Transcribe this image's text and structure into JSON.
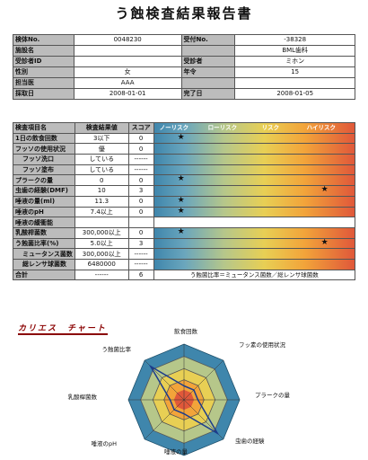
{
  "title": "う蝕検査結果報告書",
  "info": {
    "rows": [
      {
        "l1": "検体No.",
        "v1": "0048230",
        "l2": "受付No.",
        "v2": "-38328"
      },
      {
        "l1": "施設名",
        "v1": "",
        "l2": "",
        "v2": "BML歯科"
      },
      {
        "l1": "受診者ID",
        "v1": "",
        "l2": "受診者",
        "v2": "ミホン"
      },
      {
        "l1": "性別",
        "v1": "女",
        "l2": "年令",
        "v2": "15"
      },
      {
        "l1": "担当医",
        "v1": "AAA",
        "l2": "",
        "v2": ""
      },
      {
        "l1": "採取日",
        "v1": "2008-01-01",
        "l2": "完了日",
        "v2": "2008-01-05"
      }
    ]
  },
  "results": {
    "headers": {
      "item": "検査項目名",
      "value": "検査結果値",
      "score": "スコア"
    },
    "risk_labels": [
      "ノーリスク",
      "ローリスク",
      "リスク",
      "ハイリスク"
    ],
    "rows": [
      {
        "name": "1日の飲食回数",
        "value": "3以下",
        "score": "0",
        "star": 0.1,
        "sub": false
      },
      {
        "name": "フッソの使用状況",
        "value": "優",
        "score": "0",
        "star": null,
        "sub": false
      },
      {
        "name": "フッソ洗口",
        "value": "している",
        "score": "------",
        "star": null,
        "sub": true
      },
      {
        "name": "フッソ塗布",
        "value": "している",
        "score": "------",
        "star": null,
        "sub": true
      },
      {
        "name": "プラークの量",
        "value": "0",
        "score": "0",
        "star": 0.1,
        "sub": false
      },
      {
        "name": "虫歯の経験(DMF)",
        "value": "10",
        "score": "3",
        "star": 0.9,
        "sub": false
      },
      {
        "name": "唾液の量(ml)",
        "value": "11.3",
        "score": "0",
        "star": 0.1,
        "sub": false
      },
      {
        "name": "唾液のpH",
        "value": "7.4以上",
        "score": "0",
        "star": 0.1,
        "sub": false
      },
      {
        "name": "唾液の緩衝能",
        "value": "",
        "score": "",
        "star": null,
        "sub": false
      },
      {
        "name": "乳酸桿菌数",
        "value": "300,000以上",
        "score": "0",
        "star": 0.1,
        "sub": false
      },
      {
        "name": "う蝕菌比率(%)",
        "value": "5.0以上",
        "score": "3",
        "star": 0.9,
        "sub": false
      },
      {
        "name": "ミュータンス菌数",
        "value": "300,000以上",
        "score": "------",
        "star": null,
        "sub": true
      },
      {
        "name": "総レンサ球菌数",
        "value": "6480000",
        "score": "------",
        "star": null,
        "sub": true
      }
    ],
    "total": {
      "name": "合計",
      "value": "------",
      "score": "6"
    },
    "note": "う蝕菌比率＝ミュータンス菌数／総レンサ球菌数"
  },
  "chart": {
    "title": "カリエス　チャート",
    "axes": [
      "飲食回数",
      "フッ素の使用状況",
      "プラークの量",
      "虫歯の経験",
      "唾液の量",
      "唾液のpH",
      "乳酸桿菌数",
      "う蝕菌比率"
    ],
    "scores": [
      0,
      0,
      0,
      3,
      0,
      0,
      0,
      3
    ],
    "max": 3,
    "colors": {
      "outer": "#3f86ac",
      "mid": "#b6c78a",
      "inner1": "#e8cf54",
      "inner2": "#f2a43a",
      "core": "#e0583a"
    }
  }
}
